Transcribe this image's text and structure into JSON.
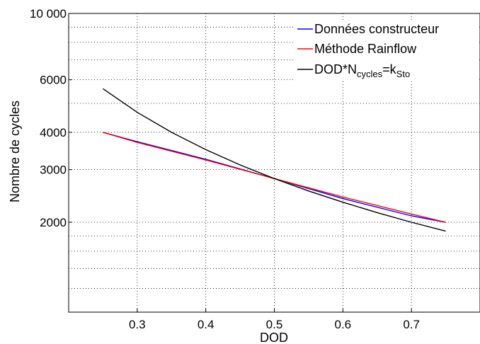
{
  "chart_data": {
    "type": "line",
    "xlabel": "DOD",
    "ylabel": "Nombre de cycles",
    "xlim": [
      0.2,
      0.8
    ],
    "ylim": [
      1000,
      10000
    ],
    "yscale": "log",
    "grid": "dotted",
    "legend_position": "top-right",
    "x_ticks": [
      0.3,
      0.4,
      0.5,
      0.6,
      0.7
    ],
    "x_tick_labels": [
      "0.3",
      "0.4",
      "0.5",
      "0.6",
      "0.7"
    ],
    "y_ticks": [
      2000,
      3000,
      4000,
      6000,
      10000
    ],
    "y_tick_labels": [
      "2000",
      "3000",
      "4000",
      "6000",
      "10 000"
    ],
    "y_grid_minor": [
      1200,
      1400,
      1600,
      1800,
      5000,
      7000,
      8000,
      9000
    ],
    "series": [
      {
        "name": "Données constructeur",
        "color": "#0000ff",
        "x": [
          0.25,
          0.3,
          0.4,
          0.5,
          0.6,
          0.7,
          0.75
        ],
        "y": [
          4000,
          3720,
          3250,
          2800,
          2400,
          2100,
          2000
        ]
      },
      {
        "name": "Méthode Rainflow",
        "color": "#ff0000",
        "x": [
          0.25,
          0.3,
          0.4,
          0.5,
          0.6,
          0.7,
          0.75
        ],
        "y": [
          4000,
          3700,
          3230,
          2800,
          2430,
          2130,
          2000
        ]
      },
      {
        "name": "DOD*N",
        "name_sub": "cycles",
        "name_mid": "=k",
        "name_sub2": "Sto",
        "color": "#000000",
        "x": [
          0.25,
          0.3,
          0.35,
          0.4,
          0.45,
          0.5,
          0.55,
          0.6,
          0.65,
          0.7,
          0.75
        ],
        "y": [
          5600,
          4667,
          4000,
          3500,
          3111,
          2800,
          2545,
          2333,
          2154,
          2000,
          1867
        ]
      }
    ]
  }
}
